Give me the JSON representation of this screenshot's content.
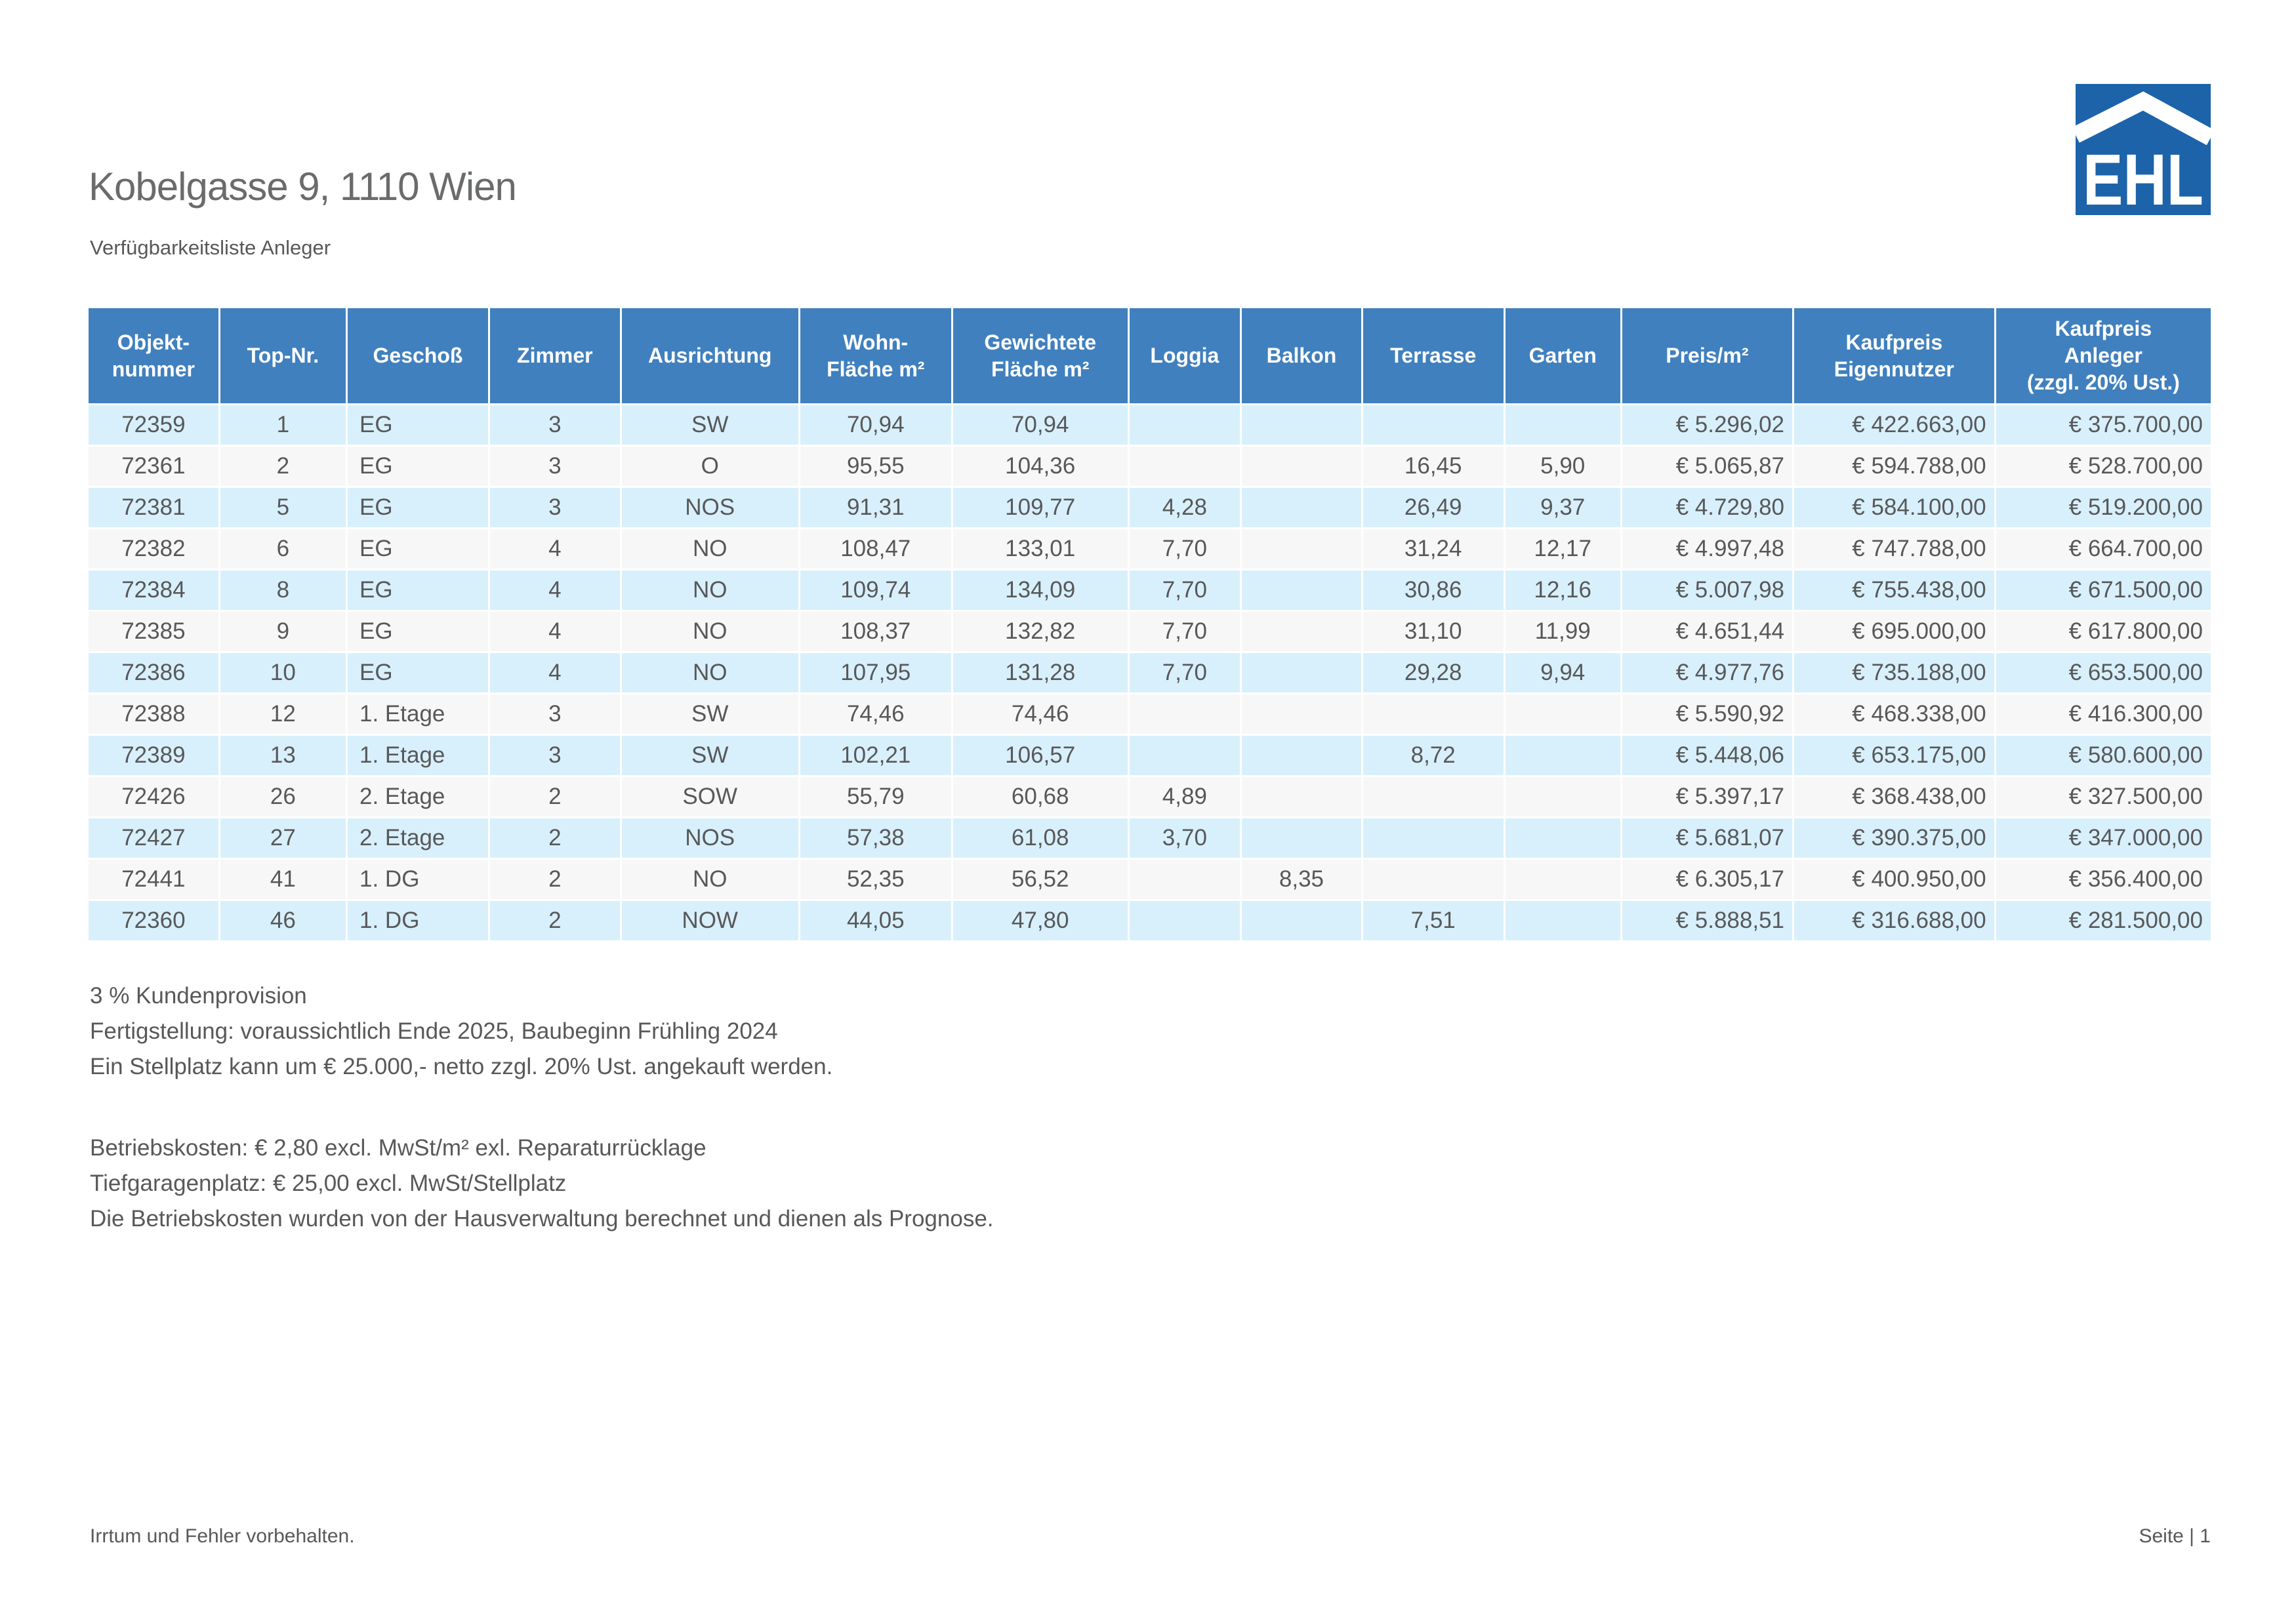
{
  "header": {
    "title": "Kobelgasse 9, 1110 Wien",
    "subtitle": "Verfügbarkeitsliste Anleger",
    "logo": {
      "text": "EHL"
    }
  },
  "table": {
    "columns": [
      {
        "label": "Objekt-\nnummer",
        "align": "center",
        "width": "6.2%"
      },
      {
        "label": "Top-Nr.",
        "align": "center",
        "width": "6.0%"
      },
      {
        "label": "Geschoß",
        "align": "left",
        "width": "6.7%"
      },
      {
        "label": "Zimmer",
        "align": "center",
        "width": "6.2%"
      },
      {
        "label": "Ausrichtung",
        "align": "center",
        "width": "8.4%"
      },
      {
        "label": "Wohn-\nFläche m²",
        "align": "center",
        "width": "7.2%"
      },
      {
        "label": "Gewichtete\nFläche m²",
        "align": "center",
        "width": "8.3%"
      },
      {
        "label": "Loggia",
        "align": "center",
        "width": "5.3%"
      },
      {
        "label": "Balkon",
        "align": "center",
        "width": "5.7%"
      },
      {
        "label": "Terrasse",
        "align": "center",
        "width": "6.7%"
      },
      {
        "label": "Garten",
        "align": "center",
        "width": "5.5%"
      },
      {
        "label": "Preis/m²",
        "align": "right",
        "width": "8.1%"
      },
      {
        "label": "Kaufpreis\nEigennutzer",
        "align": "right",
        "width": "9.5%"
      },
      {
        "label": "Kaufpreis\nAnleger\n(zzgl. 20% Ust.)",
        "align": "right",
        "width": "10.2%"
      }
    ],
    "rows": [
      [
        "72359",
        "1",
        "EG",
        "3",
        "SW",
        "70,94",
        "70,94",
        "",
        "",
        "",
        "",
        "€ 5.296,02",
        "€ 422.663,00",
        "€ 375.700,00"
      ],
      [
        "72361",
        "2",
        "EG",
        "3",
        "O",
        "95,55",
        "104,36",
        "",
        "",
        "16,45",
        "5,90",
        "€ 5.065,87",
        "€ 594.788,00",
        "€ 528.700,00"
      ],
      [
        "72381",
        "5",
        "EG",
        "3",
        "NOS",
        "91,31",
        "109,77",
        "4,28",
        "",
        "26,49",
        "9,37",
        "€ 4.729,80",
        "€ 584.100,00",
        "€ 519.200,00"
      ],
      [
        "72382",
        "6",
        "EG",
        "4",
        "NO",
        "108,47",
        "133,01",
        "7,70",
        "",
        "31,24",
        "12,17",
        "€ 4.997,48",
        "€ 747.788,00",
        "€ 664.700,00"
      ],
      [
        "72384",
        "8",
        "EG",
        "4",
        "NO",
        "109,74",
        "134,09",
        "7,70",
        "",
        "30,86",
        "12,16",
        "€ 5.007,98",
        "€ 755.438,00",
        "€ 671.500,00"
      ],
      [
        "72385",
        "9",
        "EG",
        "4",
        "NO",
        "108,37",
        "132,82",
        "7,70",
        "",
        "31,10",
        "11,99",
        "€ 4.651,44",
        "€ 695.000,00",
        "€ 617.800,00"
      ],
      [
        "72386",
        "10",
        "EG",
        "4",
        "NO",
        "107,95",
        "131,28",
        "7,70",
        "",
        "29,28",
        "9,94",
        "€ 4.977,76",
        "€ 735.188,00",
        "€ 653.500,00"
      ],
      [
        "72388",
        "12",
        "1. Etage",
        "3",
        "SW",
        "74,46",
        "74,46",
        "",
        "",
        "",
        "",
        "€ 5.590,92",
        "€ 468.338,00",
        "€ 416.300,00"
      ],
      [
        "72389",
        "13",
        "1. Etage",
        "3",
        "SW",
        "102,21",
        "106,57",
        "",
        "",
        "8,72",
        "",
        "€ 5.448,06",
        "€ 653.175,00",
        "€ 580.600,00"
      ],
      [
        "72426",
        "26",
        "2. Etage",
        "2",
        "SOW",
        "55,79",
        "60,68",
        "4,89",
        "",
        "",
        "",
        "€ 5.397,17",
        "€ 368.438,00",
        "€ 327.500,00"
      ],
      [
        "72427",
        "27",
        "2. Etage",
        "2",
        "NOS",
        "57,38",
        "61,08",
        "3,70",
        "",
        "",
        "",
        "€ 5.681,07",
        "€ 390.375,00",
        "€ 347.000,00"
      ],
      [
        "72441",
        "41",
        "1. DG",
        "2",
        "NO",
        "52,35",
        "56,52",
        "",
        "8,35",
        "",
        "",
        "€ 6.305,17",
        "€ 400.950,00",
        "€ 356.400,00"
      ],
      [
        "72360",
        "46",
        "1. DG",
        "2",
        "NOW",
        "44,05",
        "47,80",
        "",
        "",
        "7,51",
        "",
        "€ 5.888,51",
        "€ 316.688,00",
        "€ 281.500,00"
      ]
    ]
  },
  "notes": {
    "block1": [
      "3 % Kundenprovision",
      "Fertigstellung: voraussichtlich Ende 2025, Baubeginn Frühling 2024",
      "Ein Stellplatz kann um € 25.000,- netto zzgl. 20% Ust. angekauft werden."
    ],
    "block2": [
      "Betriebskosten: € 2,80 excl. MwSt/m² exl. Reparaturrücklage",
      "Tiefgaragenplatz: € 25,00 excl. MwSt/Stellplatz",
      "Die Betriebskosten wurden von der Hausverwaltung berechnet und dienen als Prognose."
    ]
  },
  "footer": {
    "left": "Irrtum und Fehler vorbehalten.",
    "right": "Seite | 1"
  },
  "colors": {
    "header_blue": "#4080be",
    "row_blue": "#d8f0fb",
    "row_gray": "#f7f7f7",
    "logo_blue": "#1c63a9",
    "text_gray": "#58585a",
    "title_gray": "#6a6b6d"
  }
}
